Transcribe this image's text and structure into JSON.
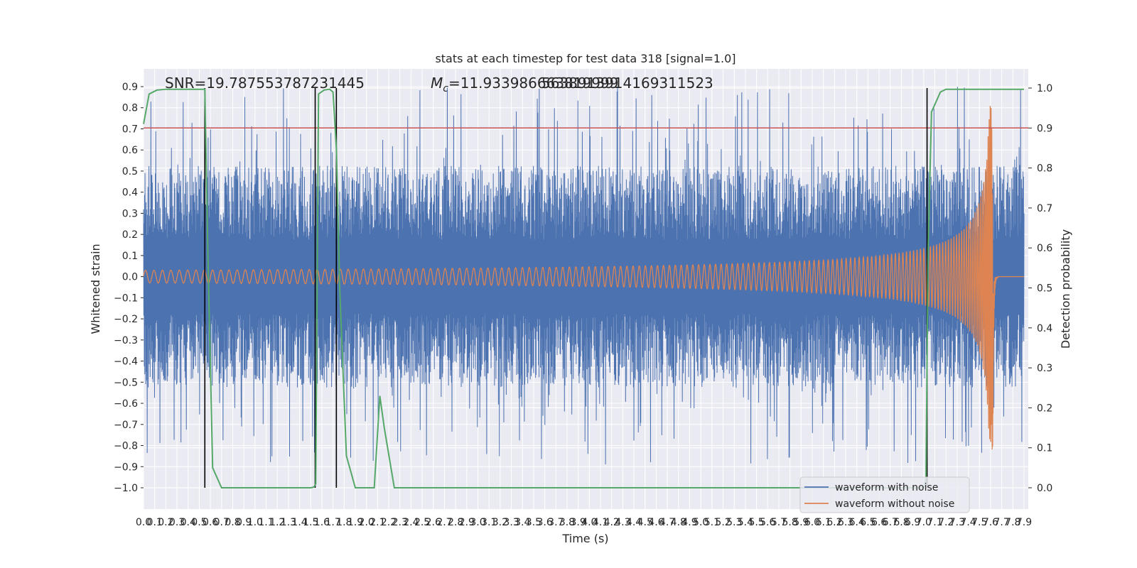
{
  "chart_data": {
    "type": "line",
    "title": "stats at each timestep for test data 318 [signal=1.0]",
    "xlabel": "Time (s)",
    "ylabel_left": "Whitened strain",
    "ylabel_right": "Detection probability",
    "xlim": [
      0.0,
      7.9
    ],
    "ylim_left": [
      -1.0,
      0.9
    ],
    "ylim_right": [
      0.0,
      1.0
    ],
    "grid": true,
    "legend_position": "lower right",
    "annotations": {
      "snr": "SNR=19.787553787231445",
      "mc_prefix": "M",
      "mc_sub": "c",
      "mc_value": "=11.933986663819999",
      "mc_overlap": "5638913914169311523"
    },
    "x_ticks": [
      "0.0",
      "0.1",
      "0.2",
      "0.3",
      "0.4",
      "0.5",
      "0.6",
      "0.7",
      "0.8",
      "0.9",
      "1.0",
      "1.1",
      "1.2",
      "1.3",
      "1.4",
      "1.5",
      "1.6",
      "1.7",
      "1.8",
      "1.9",
      "2.0",
      "2.1",
      "2.2",
      "2.3",
      "2.4",
      "2.5",
      "2.6",
      "2.7",
      "2.8",
      "2.9",
      "3.0",
      "3.1",
      "3.2",
      "3.3",
      "3.4",
      "3.5",
      "3.6",
      "3.7",
      "3.8",
      "3.9",
      "4.0",
      "4.1",
      "4.2",
      "4.3",
      "4.4",
      "4.5",
      "4.6",
      "4.7",
      "4.8",
      "4.9",
      "5.0",
      "5.1",
      "5.2",
      "5.3",
      "5.4",
      "5.5",
      "5.6",
      "5.7",
      "5.8",
      "5.9",
      "6.0",
      "6.1",
      "6.2",
      "6.3",
      "6.4",
      "6.5",
      "6.6",
      "6.7",
      "6.8",
      "6.9",
      "7.0",
      "7.1",
      "7.2",
      "7.3",
      "7.4",
      "7.5",
      "7.6",
      "7.7",
      "7.8",
      "7.9"
    ],
    "y_ticks_left": [
      "0.9",
      "0.8",
      "0.7",
      "0.6",
      "0.5",
      "0.4",
      "0.3",
      "0.2",
      "0.1",
      "0.0",
      "−0.1",
      "−0.2",
      "−0.3",
      "−0.4",
      "−0.5",
      "−0.6",
      "−0.7",
      "−0.8",
      "−0.9",
      "−1.0"
    ],
    "y_ticks_right": [
      "1.0",
      "0.9",
      "0.8",
      "0.7",
      "0.6",
      "0.5",
      "0.4",
      "0.3",
      "0.2",
      "0.1",
      "0.0"
    ],
    "threshold_line": {
      "value": 0.9,
      "axis": "right",
      "color": "#c44e52"
    },
    "event_lines": [
      0.55,
      1.54,
      1.73,
      7.03
    ],
    "series": [
      {
        "name": "waveform with noise",
        "color": "#4c72b0",
        "envelope": {
          "mean_abs": 0.35,
          "max_abs": 0.9
        }
      },
      {
        "name": "waveform without noise",
        "color": "#dd8452",
        "chirp": {
          "start": 0.0,
          "merger": 7.62,
          "end": 7.9,
          "amplitude_start": 0.03,
          "amplitude_peak": 0.82,
          "min": -0.93
        }
      },
      {
        "name": "detection probability",
        "color": "#55a868",
        "x": [
          0.0,
          0.05,
          0.12,
          0.2,
          0.3,
          0.4,
          0.47,
          0.52,
          0.55,
          0.58,
          0.62,
          0.7,
          0.8,
          1.0,
          1.3,
          1.5,
          1.53,
          1.545,
          1.57,
          1.62,
          1.67,
          1.7,
          1.73,
          1.76,
          1.82,
          1.9,
          1.98,
          2.07,
          2.12,
          2.16,
          2.25,
          2.5,
          3.0,
          4.0,
          5.0,
          6.0,
          6.8,
          7.0,
          7.02,
          7.04,
          7.07,
          7.15,
          7.2,
          7.3,
          7.5,
          7.7,
          7.9
        ],
        "y": [
          0.91,
          0.985,
          0.995,
          0.997,
          0.997,
          0.997,
          0.997,
          0.997,
          0.997,
          0.55,
          0.05,
          0.0,
          0.0,
          0.0,
          0.0,
          0.0,
          0.002,
          0.01,
          0.985,
          0.995,
          0.997,
          0.99,
          0.85,
          0.5,
          0.08,
          0.0,
          0.0,
          0.0,
          0.23,
          0.15,
          0.0,
          0.0,
          0.0,
          0.0,
          0.0,
          0.0,
          0.0,
          0.0,
          0.02,
          0.6,
          0.94,
          0.99,
          0.997,
          0.997,
          0.997,
          0.997,
          0.997
        ]
      }
    ]
  }
}
